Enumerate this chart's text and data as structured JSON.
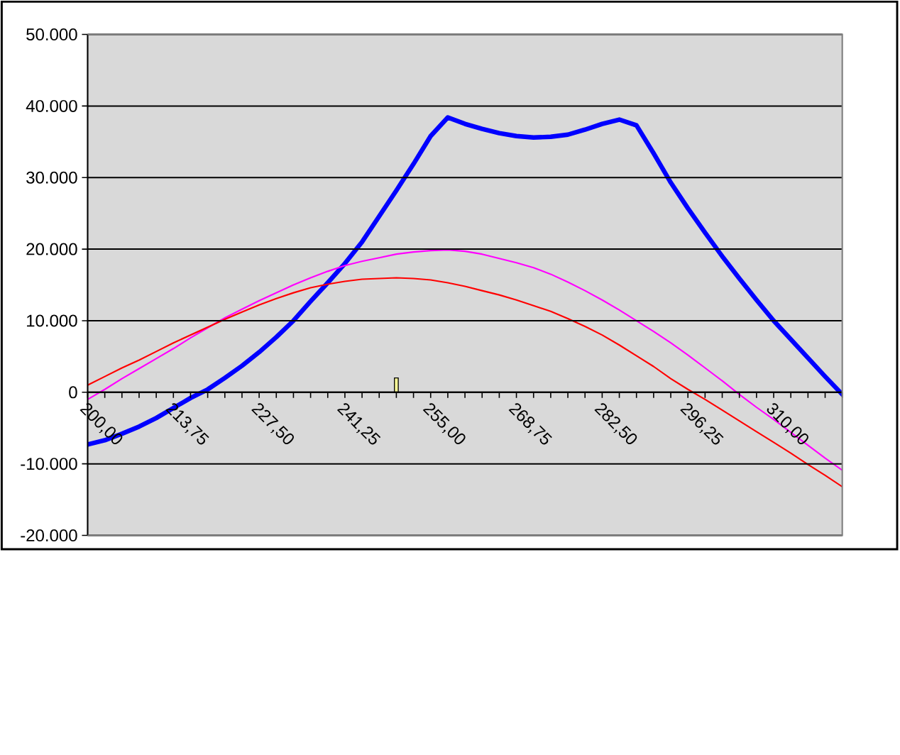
{
  "chart_data": {
    "type": "line",
    "categories": [
      "200,00",
      null,
      null,
      null,
      null,
      "213,75",
      null,
      null,
      null,
      null,
      "227,50",
      null,
      null,
      null,
      null,
      "241,25",
      null,
      null,
      null,
      null,
      "255,00",
      null,
      null,
      null,
      null,
      "268,75",
      null,
      null,
      null,
      null,
      "282,50",
      null,
      null,
      null,
      null,
      "296,25",
      null,
      null,
      null,
      null,
      "310,00",
      null,
      null,
      null,
      null
    ],
    "ylim": [
      -20000,
      50000
    ],
    "yticks": [
      {
        "value": -20000,
        "label": "-20.000"
      },
      {
        "value": -10000,
        "label": "-10.000"
      },
      0,
      {
        "value": 10000,
        "label": "10.000"
      },
      {
        "value": 20000,
        "label": "20.000"
      },
      {
        "value": 30000,
        "label": "30.000"
      },
      {
        "value": 40000,
        "label": "40.000"
      },
      {
        "value": 50000,
        "label": "50.000"
      }
    ],
    "grid": "y",
    "marker": "none",
    "line_style": "solid",
    "series": [
      {
        "color": "#0000ff",
        "values": [
          -7300,
          -6700,
          -5800,
          -4800,
          -3600,
          -2200,
          -800,
          400,
          2000,
          3700,
          5600,
          7700,
          10000,
          12700,
          15300,
          18000,
          21000,
          24600,
          28200,
          31900,
          35800,
          38400,
          37500,
          36800,
          36200,
          35800,
          35600,
          35700,
          36000,
          36700,
          37500,
          38100,
          37300,
          33400,
          29300,
          25700,
          22300,
          19000,
          15900,
          12900,
          10000,
          7400,
          4800,
          2200,
          -300
        ]
      },
      {
        "color": "#ff00ff",
        "values": [
          -1000,
          400,
          1900,
          3300,
          4700,
          6100,
          7600,
          9000,
          10400,
          11600,
          12800,
          13900,
          15000,
          16000,
          16900,
          17700,
          18300,
          18800,
          19300,
          19600,
          19800,
          19900,
          19700,
          19300,
          18700,
          18100,
          17400,
          16500,
          15400,
          14200,
          12900,
          11500,
          10000,
          8500,
          6900,
          5200,
          3400,
          1600,
          -300,
          -2100,
          -3800,
          -5600,
          -7400,
          -9200,
          -10900
        ]
      },
      {
        "color": "#ff0000",
        "values": [
          1000,
          2200,
          3400,
          4500,
          5700,
          6900,
          8000,
          9100,
          10200,
          11200,
          12200,
          13100,
          13900,
          14600,
          15100,
          15500,
          15800,
          15900,
          16000,
          15900,
          15700,
          15300,
          14800,
          14200,
          13600,
          12900,
          12100,
          11300,
          10300,
          9200,
          8000,
          6600,
          5100,
          3600,
          1900,
          400,
          -1000,
          -2500,
          -4000,
          -5500,
          -7000,
          -8500,
          -10100,
          -11600,
          -13200
        ]
      },
      {
        "type": "bar",
        "color": "#ffff99",
        "values": [
          null,
          null,
          null,
          null,
          null,
          null,
          null,
          null,
          null,
          null,
          null,
          null,
          null,
          null,
          null,
          null,
          null,
          null,
          2000,
          null,
          null,
          null,
          null,
          null,
          null,
          null,
          null,
          null,
          null,
          null,
          null,
          null,
          null,
          null,
          null,
          null,
          null,
          null,
          null,
          null,
          null,
          null,
          null,
          null,
          null
        ]
      }
    ]
  }
}
